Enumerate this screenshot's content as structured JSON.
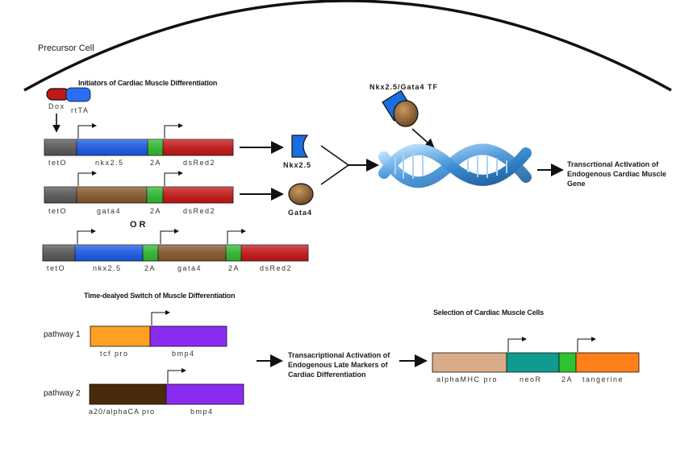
{
  "cell_label": "Precursor Cell",
  "initiators_title": "Initiators of Cardiac Muscle Differentiation",
  "dox_label": "Dox",
  "rtta_label": "rtTA",
  "tf_label": "Nkx2.5/Gata4 TF",
  "constructs": {
    "row1": [
      "tetO",
      "nkx2.5",
      "2A",
      "dsRed2"
    ],
    "row2": [
      "tetO",
      "gata4",
      "2A",
      "dsRed2"
    ],
    "or_label": "OR",
    "row3": [
      "tetO",
      "nkx2.5",
      "2A",
      "gata4",
      "2A",
      "dsRed2"
    ]
  },
  "nkx_protein_label": "Nkx2.5",
  "gata_protein_label": "Gata4",
  "activation_text": "Transcrtional Activation of Endogenous Cardiac Muscle Gene",
  "switch_title": "Time-dealyed Switch of Muscle Differentiation",
  "pathway1_label": "pathway 1",
  "pathway1_segments": [
    "tcf pro",
    "bmp4"
  ],
  "pathway2_label": "pathway 2",
  "pathway2_segments": [
    "a20/alphaCA pro",
    "bmp4"
  ],
  "late_marker_text": "Transacriptional Activation of Endogenous Late Markers of Cardiac Differentiation",
  "selection_title": "Selection of  Cardiac Muscle Cells",
  "selection_segments": [
    "alphaMHC pro",
    "neoR",
    "2A",
    "tangerine"
  ],
  "colors": {
    "teto": "#5a5a5a",
    "nkx": "#1a5cf0",
    "twoA": "#2fc12f",
    "dsred": "#cc1515",
    "gata": "#8a5a2c",
    "tcf": "#ffa022",
    "bmp4": "#8a2cf0",
    "a20": "#4a2a0c",
    "alphamhc": "#d8ac88",
    "neor": "#119a90",
    "tangerine": "#ff7f1a",
    "dna": "#4d9cd6"
  }
}
